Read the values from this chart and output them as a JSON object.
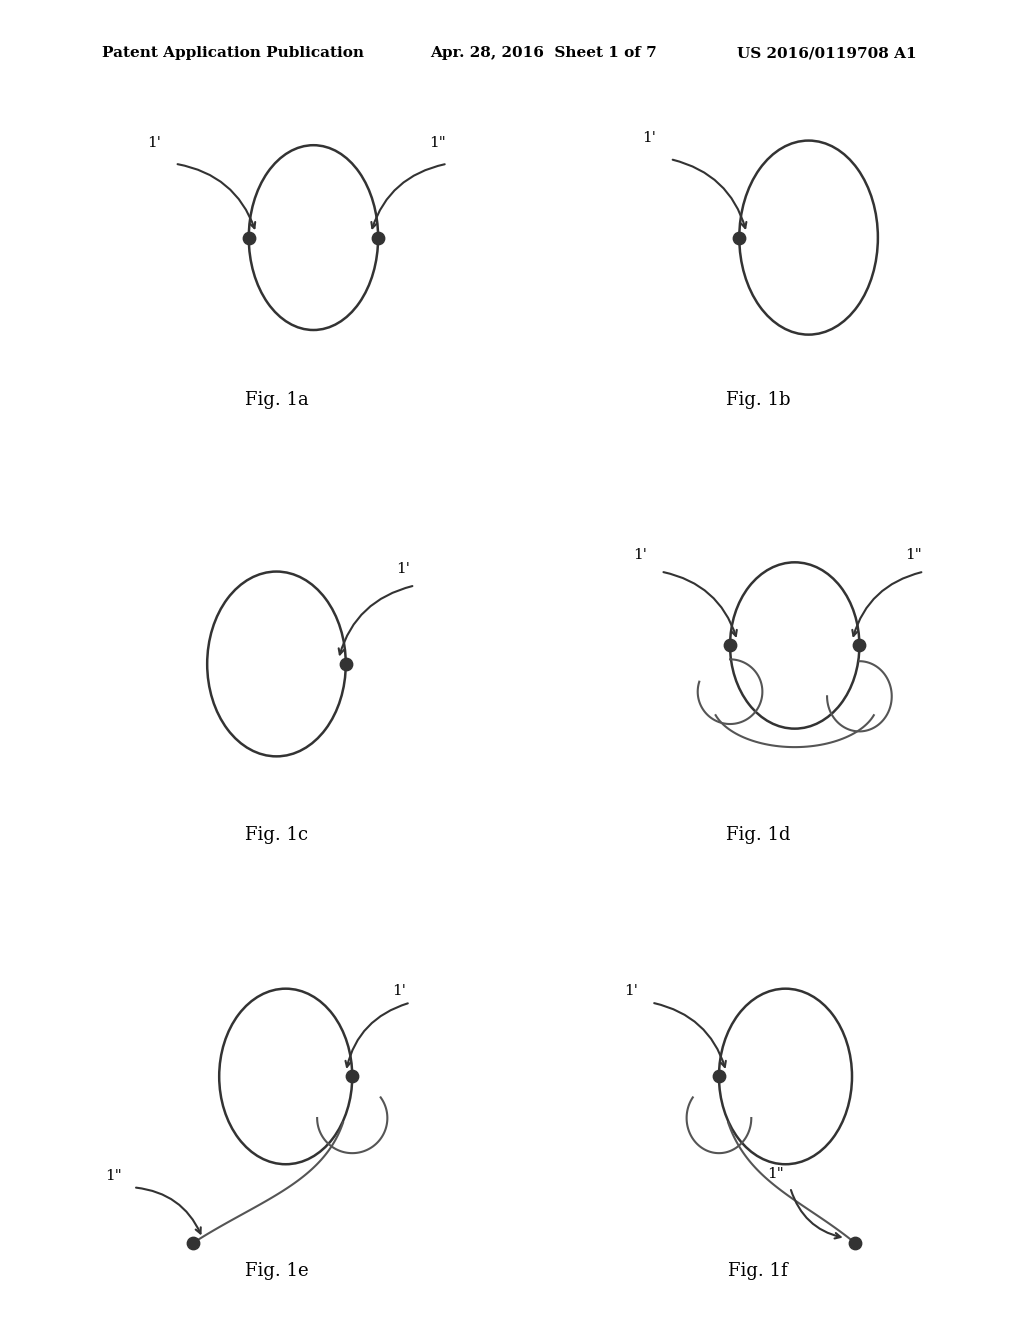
{
  "background_color": "#ffffff",
  "header_left": "Patent Application Publication",
  "header_mid": "Apr. 28, 2016  Sheet 1 of 7",
  "header_right": "US 2016/0119708 A1",
  "header_fontsize": 11,
  "fig_labels": [
    "Fig. 1a",
    "Fig. 1b",
    "Fig. 1c",
    "Fig. 1d",
    "Fig. 1e",
    "Fig. 1f"
  ],
  "label_fontsize": 13,
  "dot_color": "#333333",
  "dot_size": 80,
  "ellipse_color": "#333333",
  "ellipse_lw": 1.8
}
